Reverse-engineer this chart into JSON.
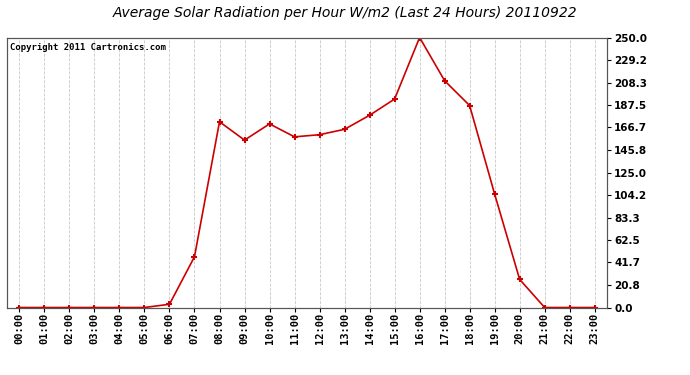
{
  "title": "Average Solar Radiation per Hour W/m2 (Last 24 Hours) 20110922",
  "copyright": "Copyright 2011 Cartronics.com",
  "hours": [
    "00:00",
    "01:00",
    "02:00",
    "03:00",
    "04:00",
    "05:00",
    "06:00",
    "07:00",
    "08:00",
    "09:00",
    "10:00",
    "11:00",
    "12:00",
    "13:00",
    "14:00",
    "15:00",
    "16:00",
    "17:00",
    "18:00",
    "19:00",
    "20:00",
    "21:00",
    "22:00",
    "23:00"
  ],
  "values": [
    0.0,
    0.0,
    0.0,
    0.0,
    0.0,
    0.0,
    3.0,
    47.0,
    172.0,
    155.0,
    170.0,
    158.0,
    160.0,
    165.0,
    178.0,
    193.0,
    250.0,
    210.0,
    187.0,
    105.0,
    26.0,
    0.0,
    0.0,
    0.0
  ],
  "line_color": "#cc0000",
  "marker_color": "#cc0000",
  "bg_color": "#ffffff",
  "grid_color": "#c8c8c8",
  "ylim": [
    0,
    250
  ],
  "yticks": [
    0.0,
    20.8,
    41.7,
    62.5,
    83.3,
    104.2,
    125.0,
    145.8,
    166.7,
    187.5,
    208.3,
    229.2,
    250.0
  ],
  "ytick_labels": [
    "0.0",
    "20.8",
    "41.7",
    "62.5",
    "83.3",
    "104.2",
    "125.0",
    "145.8",
    "166.7",
    "187.5",
    "208.3",
    "229.2",
    "250.0"
  ],
  "title_fontsize": 10,
  "copyright_fontsize": 6.5,
  "tick_fontsize": 7.5
}
